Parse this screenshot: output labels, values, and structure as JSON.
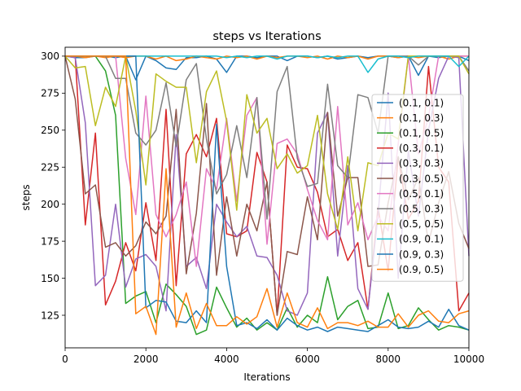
{
  "chart_data": {
    "type": "line",
    "title": "steps vs Iterations",
    "xlabel": "Iterations",
    "ylabel": "steps",
    "xlim": [
      0,
      10000
    ],
    "ylim": [
      103,
      306
    ],
    "xticks": [
      0,
      2000,
      4000,
      6000,
      8000,
      10000
    ],
    "yticks": [
      125,
      150,
      175,
      200,
      225,
      250,
      275,
      300
    ],
    "grid": false,
    "legend_position": "right",
    "x": [
      0,
      250,
      500,
      750,
      1000,
      1250,
      1500,
      1750,
      2000,
      2250,
      2500,
      2750,
      3000,
      3250,
      3500,
      3750,
      4000,
      4250,
      4500,
      4750,
      5000,
      5250,
      5500,
      5750,
      6000,
      6250,
      6500,
      6750,
      7000,
      7250,
      7500,
      7750,
      8000,
      8250,
      8500,
      8750,
      9000,
      9250,
      9500,
      9750,
      10000
    ],
    "series": [
      {
        "name": "(0.1, 0.1)",
        "color": "#1f77b4",
        "values": [
          300,
          299,
          299,
          300,
          300,
          299,
          300,
          284,
          300,
          297,
          292,
          291,
          299,
          299,
          300,
          298,
          289,
          300,
          300,
          299,
          300,
          300,
          297,
          300,
          300,
          299,
          300,
          298,
          299,
          300,
          299,
          300,
          300,
          299,
          300,
          287,
          300,
          299,
          300,
          300,
          297
        ]
      },
      {
        "name": "(0.1, 0.3)",
        "color": "#ff7f0e",
        "values": [
          300,
          300,
          299,
          300,
          299,
          300,
          299,
          300,
          300,
          298,
          300,
          297,
          298,
          300,
          299,
          298,
          300,
          299,
          300,
          298,
          300,
          299,
          300,
          300,
          299,
          300,
          298,
          300,
          299,
          300,
          298,
          300,
          300,
          299,
          300,
          299,
          300,
          300,
          298,
          300,
          300
        ]
      },
      {
        "name": "(0.1, 0.5)",
        "color": "#2ca02c",
        "values": [
          300,
          300,
          300,
          300,
          290,
          260,
          133,
          138,
          141,
          120,
          146,
          139,
          131,
          112,
          115,
          144,
          130,
          117,
          123,
          115,
          120,
          115,
          130,
          117,
          125,
          120,
          151,
          122,
          131,
          135,
          116,
          117,
          140,
          116,
          118,
          130,
          122,
          115,
          118,
          117,
          115
        ]
      },
      {
        "name": "(0.3, 0.1)",
        "color": "#d62728",
        "values": [
          300,
          300,
          186,
          248,
          132,
          148,
          174,
          155,
          201,
          162,
          264,
          145,
          234,
          247,
          232,
          258,
          180,
          178,
          182,
          235,
          215,
          125,
          240,
          225,
          224,
          208,
          178,
          183,
          162,
          174,
          129,
          198,
          155,
          232,
          190,
          202,
          293,
          225,
          215,
          128,
          140
        ]
      },
      {
        "name": "(0.3, 0.3)",
        "color": "#9467bd",
        "values": [
          300,
          299,
          255,
          145,
          152,
          200,
          144,
          163,
          166,
          158,
          128,
          247,
          158,
          164,
          143,
          200,
          188,
          178,
          185,
          165,
          164,
          152,
          128,
          125,
          140,
          248,
          262,
          165,
          226,
          143,
          129,
          193,
          275,
          150,
          236,
          192,
          250,
          285,
          300,
          299,
          165
        ]
      },
      {
        "name": "(0.3, 0.5)",
        "color": "#8c564b",
        "values": [
          300,
          271,
          207,
          213,
          171,
          174,
          165,
          172,
          188,
          180,
          192,
          264,
          153,
          194,
          268,
          152,
          205,
          165,
          200,
          182,
          215,
          125,
          168,
          166,
          205,
          176,
          262,
          192,
          218,
          218,
          158,
          159,
          201,
          232,
          203,
          218,
          174,
          201,
          222,
          187,
          170
        ]
      },
      {
        "name": "(0.5, 0.1)",
        "color": "#e377c2",
        "values": [
          300,
          300,
          300,
          300,
          300,
          300,
          231,
          193,
          273,
          193,
          178,
          193,
          215,
          158,
          224,
          210,
          258,
          202,
          260,
          272,
          173,
          241,
          244,
          234,
          210,
          189,
          176,
          266,
          186,
          201,
          176,
          192,
          182,
          241,
          300,
          234,
          259,
          300,
          300,
          300,
          300
        ]
      },
      {
        "name": "(0.5, 0.3)",
        "color": "#7f7f7f",
        "values": [
          300,
          300,
          300,
          300,
          300,
          285,
          285,
          248,
          240,
          250,
          282,
          239,
          284,
          295,
          244,
          207,
          220,
          253,
          218,
          272,
          190,
          276,
          293,
          231,
          212,
          214,
          281,
          226,
          218,
          274,
          272,
          248,
          300,
          300,
          300,
          294,
          300,
          300,
          300,
          300,
          290
        ]
      },
      {
        "name": "(0.5, 0.5)",
        "color": "#bcbd22",
        "values": [
          300,
          292,
          293,
          253,
          279,
          266,
          300,
          263,
          213,
          288,
          283,
          279,
          279,
          228,
          276,
          290,
          256,
          196,
          274,
          248,
          258,
          224,
          234,
          221,
          226,
          260,
          207,
          183,
          232,
          182,
          228,
          226,
          248,
          244,
          300,
          300,
          300,
          300,
          300,
          300,
          288
        ]
      },
      {
        "name": "(0.9, 0.1)",
        "color": "#17becf",
        "values": [
          300,
          300,
          300,
          300,
          300,
          300,
          300,
          300,
          300,
          300,
          300,
          300,
          300,
          300,
          300,
          300,
          299,
          300,
          299,
          300,
          300,
          298,
          300,
          300,
          300,
          299,
          300,
          299,
          300,
          300,
          289,
          298,
          300,
          300,
          299,
          300,
          300,
          300,
          300,
          293,
          300
        ]
      },
      {
        "name": "(0.9, 0.3)",
        "color": "#1f77b4",
        "values": [
          300,
          300,
          300,
          300,
          300,
          300,
          300,
          300,
          130,
          135,
          134,
          121,
          120,
          128,
          120,
          254,
          158,
          118,
          120,
          116,
          122,
          115,
          123,
          118,
          115,
          117,
          114,
          117,
          116,
          115,
          114,
          118,
          122,
          117,
          116,
          117,
          121,
          117,
          129,
          118,
          115
        ]
      },
      {
        "name": "(0.9, 0.5)",
        "color": "#ff7f0e",
        "values": [
          300,
          300,
          300,
          300,
          300,
          300,
          300,
          126,
          131,
          112,
          224,
          117,
          140,
          116,
          133,
          118,
          118,
          124,
          119,
          124,
          143,
          117,
          140,
          120,
          117,
          130,
          116,
          120,
          120,
          118,
          121,
          117,
          117,
          126,
          117,
          125,
          128,
          121,
          120,
          126,
          128
        ]
      }
    ]
  }
}
